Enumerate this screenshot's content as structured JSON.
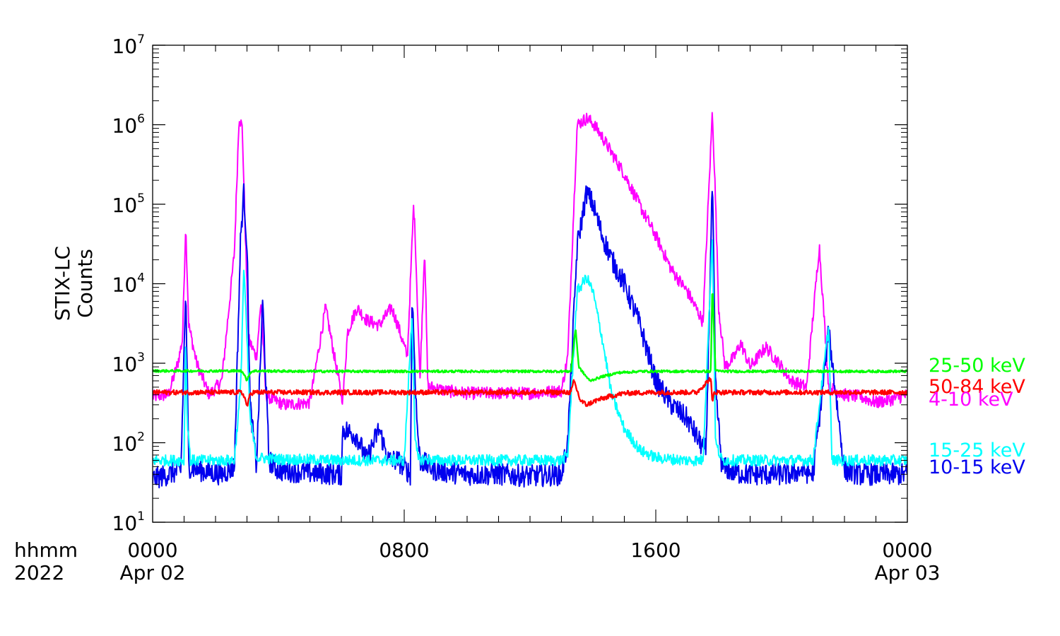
{
  "chart_data": {
    "type": "line",
    "ylabel": [
      "STIX-LC",
      "Counts"
    ],
    "xaxis": {
      "corner_label": [
        "hhmm",
        "2022"
      ],
      "range_hours": [
        0,
        24
      ],
      "ticks": [
        {
          "hour": 0,
          "line1": "0000",
          "line2": "Apr 02"
        },
        {
          "hour": 8,
          "line1": "0800",
          "line2": ""
        },
        {
          "hour": 16,
          "line1": "1600",
          "line2": ""
        },
        {
          "hour": 24,
          "line1": "0000",
          "line2": "Apr 03"
        }
      ]
    },
    "yaxis": {
      "scale": "log",
      "ylim": [
        10,
        10000000
      ],
      "ticks": [
        {
          "value": 10,
          "base": "10",
          "exp": "1"
        },
        {
          "value": 100,
          "base": "10",
          "exp": "2"
        },
        {
          "value": 1000,
          "base": "10",
          "exp": "3"
        },
        {
          "value": 10000,
          "base": "10",
          "exp": "4"
        },
        {
          "value": 100000,
          "base": "10",
          "exp": "5"
        },
        {
          "value": 1000000,
          "base": "10",
          "exp": "6"
        },
        {
          "value": 10000000,
          "base": "10",
          "exp": "7"
        }
      ]
    },
    "series": [
      {
        "name": "4-10 keV",
        "color": "#ff00ff",
        "x": [
          0,
          0.5,
          0.8,
          0.95,
          1.05,
          1.15,
          1.4,
          1.8,
          2.2,
          2.6,
          2.75,
          2.85,
          2.95,
          3.05,
          3.3,
          3.45,
          3.6,
          3.8,
          4.2,
          5,
          5.5,
          6,
          6.05,
          6.2,
          6.5,
          6.8,
          7.2,
          7.6,
          7.8,
          8.1,
          8.3,
          8.35,
          8.5,
          8.65,
          8.75,
          8.9,
          9.3,
          10,
          11,
          12,
          13,
          13.2,
          13.5,
          13.8,
          14,
          14.3,
          14.6,
          15,
          15.5,
          16,
          16.5,
          17,
          17.4,
          17.5,
          17.8,
          17.9,
          18,
          18.2,
          18.5,
          18.7,
          19,
          19.5,
          20,
          20.3,
          20.8,
          21.2,
          21.5,
          22,
          22.5,
          23,
          23.5,
          24
        ],
        "y": [
          380,
          400,
          1000,
          2000,
          55000,
          3000,
          1000,
          400,
          600,
          25000,
          1300000,
          900000,
          40000,
          2000,
          1200,
          6000,
          400,
          350,
          300,
          320,
          5000,
          400,
          350,
          2500,
          5000,
          3500,
          3000,
          5000,
          3000,
          1200,
          100000,
          40000,
          600,
          30000,
          500,
          500,
          450,
          420,
          420,
          420,
          450,
          1200,
          1000000,
          1200000,
          1050000,
          700000,
          440000,
          240000,
          95000,
          40000,
          15000,
          8000,
          4000,
          3300,
          1500000,
          110000,
          5000,
          900,
          1200,
          1800,
          900,
          1600,
          900,
          600,
          500,
          30000,
          500,
          400,
          380,
          320,
          350,
          400
        ]
      },
      {
        "name": "10-15 keV",
        "color": "#0000ee",
        "x": [
          0,
          0.5,
          0.9,
          1.05,
          1.15,
          1.5,
          2.2,
          2.6,
          2.8,
          2.9,
          3.0,
          3.1,
          3.3,
          3.5,
          3.7,
          4,
          5,
          6,
          6.05,
          6.5,
          6.8,
          7.2,
          7.5,
          7.8,
          8.2,
          8.25,
          8.4,
          8.5,
          9,
          10,
          11,
          12,
          13,
          13.2,
          13.5,
          13.8,
          14,
          14.3,
          14.6,
          15,
          15.5,
          16,
          16.5,
          17,
          17.4,
          17.6,
          17.8,
          17.9,
          18.1,
          18.5,
          19,
          20,
          20.3,
          20.6,
          21,
          21.5,
          22,
          22.5,
          23,
          23.5,
          24
        ],
        "y": [
          35,
          40,
          45,
          8000,
          50,
          45,
          40,
          50,
          40000,
          140000,
          30000,
          300,
          50,
          6000,
          60,
          45,
          42,
          40,
          150,
          120,
          60,
          150,
          60,
          60,
          40,
          8000,
          200,
          60,
          45,
          40,
          40,
          38,
          40,
          100,
          30000,
          140000,
          100000,
          40000,
          20000,
          10000,
          3000,
          600,
          300,
          200,
          100,
          80,
          200000,
          500,
          50,
          42,
          40,
          40,
          40,
          45,
          40,
          2500,
          45,
          40,
          40,
          40,
          40
        ]
      },
      {
        "name": "15-25 keV",
        "color": "#00ffff",
        "x": [
          0,
          1,
          1.05,
          1.1,
          1.2,
          2,
          2.6,
          2.8,
          2.9,
          3.0,
          3.1,
          3.3,
          4,
          6,
          8,
          8.25,
          8.35,
          8.45,
          8.6,
          9,
          10,
          12,
          13,
          13.2,
          13.5,
          13.8,
          14,
          14.3,
          14.6,
          15,
          15.5,
          16,
          16.5,
          17,
          17.5,
          17.8,
          17.9,
          18.1,
          19,
          20,
          21,
          21.5,
          21.6,
          22,
          23,
          24
        ],
        "y": [
          60,
          60,
          2000,
          200,
          60,
          60,
          60,
          500,
          17000,
          2000,
          200,
          65,
          62,
          60,
          60,
          4000,
          100,
          62,
          62,
          60,
          60,
          60,
          60,
          70,
          8000,
          12000,
          8000,
          2000,
          400,
          150,
          80,
          65,
          62,
          60,
          60,
          40000,
          100,
          60,
          60,
          60,
          60,
          3000,
          60,
          60,
          60,
          60
        ]
      },
      {
        "name": "25-50 keV",
        "color": "#00ff00",
        "x": [
          0,
          2.8,
          2.9,
          3.0,
          3.05,
          3.1,
          3.2,
          5,
          8,
          10,
          13,
          13.3,
          13.45,
          13.55,
          13.7,
          13.9,
          14.3,
          14.8,
          15.5,
          17.3,
          17.75,
          17.8,
          17.9,
          18.2,
          20,
          22,
          24
        ],
        "y": [
          800,
          800,
          750,
          600,
          680,
          760,
          800,
          790,
          790,
          790,
          790,
          790,
          2800,
          900,
          750,
          600,
          680,
          760,
          790,
          790,
          790,
          10000,
          800,
          790,
          790,
          790,
          790
        ]
      },
      {
        "name": "50-84 keV",
        "color": "#ff0000",
        "x": [
          0,
          2.8,
          2.9,
          3.0,
          3.05,
          3.1,
          3.2,
          5,
          8,
          10,
          13,
          13.3,
          13.4,
          13.6,
          13.8,
          14.1,
          14.5,
          15,
          16,
          17.3,
          17.75,
          17.8,
          17.85,
          18.2,
          20,
          22,
          24
        ],
        "y": [
          430,
          430,
          400,
          290,
          330,
          410,
          430,
          430,
          430,
          430,
          430,
          430,
          600,
          340,
          300,
          340,
          380,
          420,
          430,
          430,
          650,
          300,
          430,
          430,
          430,
          430,
          430
        ]
      }
    ],
    "legend_order": [
      "25-50 keV",
      "50-84 keV",
      "4-10 keV",
      "15-25 keV",
      "10-15 keV"
    ]
  }
}
